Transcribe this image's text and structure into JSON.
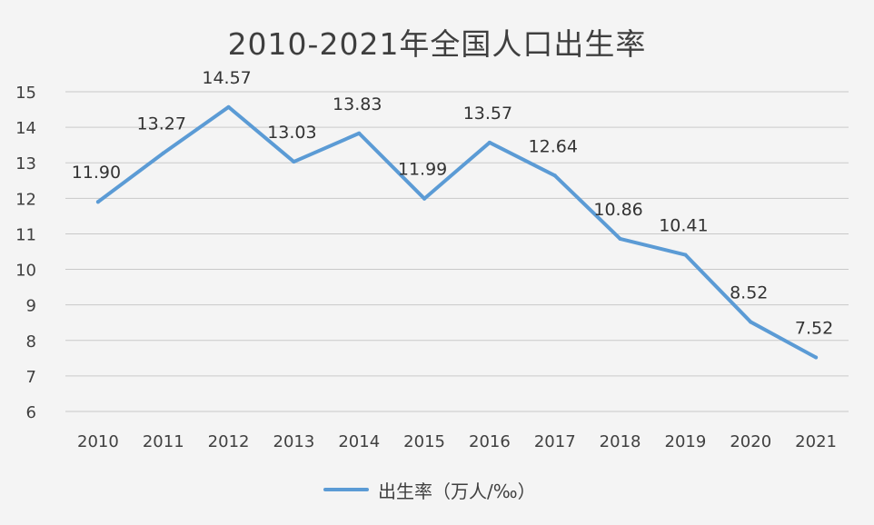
{
  "chart_data": {
    "type": "line",
    "title": "2010-2021年全国人口出生率",
    "xlabel": "",
    "ylabel": "",
    "categories": [
      "2010",
      "2011",
      "2012",
      "2013",
      "2014",
      "2015",
      "2016",
      "2017",
      "2018",
      "2019",
      "2020",
      "2021"
    ],
    "series": [
      {
        "name": "出生率（万人/‰）",
        "values": [
          11.9,
          13.27,
          14.57,
          13.03,
          13.83,
          11.99,
          13.57,
          12.64,
          10.86,
          10.41,
          8.52,
          7.52
        ],
        "labels": [
          "11.90",
          "13.27",
          "14.57",
          "13.03",
          "13.83",
          "11.99",
          "13.57",
          "12.64",
          "10.86",
          "10.41",
          "8.52",
          "7.52"
        ],
        "color": "#5b9bd5"
      }
    ],
    "ylim": [
      6,
      15
    ],
    "yticks": [
      "6",
      "7",
      "8",
      "9",
      "10",
      "11",
      "12",
      "13",
      "14",
      "15"
    ],
    "grid": true,
    "legend_position": "bottom"
  }
}
